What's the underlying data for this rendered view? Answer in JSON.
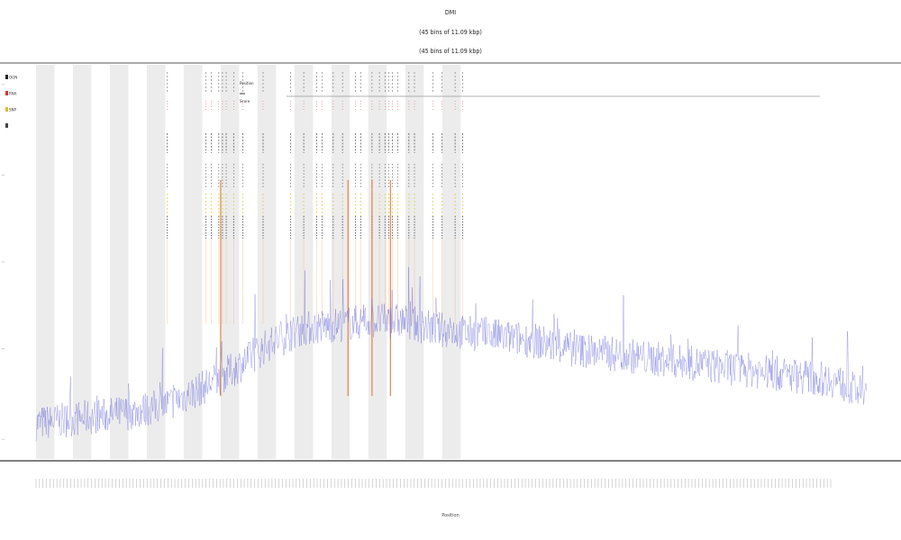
{
  "chart_data": {
    "type": "line",
    "title": [
      "DMI",
      "(45 bins of 11.09 kbp)",
      "(45 bins of 11.09 kbp)"
    ],
    "legend": [
      {
        "name": "OGN",
        "color": "#222222"
      },
      {
        "name": "RNA",
        "color": "#e03030"
      },
      {
        "name": "SNP",
        "color": "#d8c020"
      },
      {
        "name": "",
        "color": "#444444"
      }
    ],
    "inner_legend": [
      "Position",
      "",
      "Score"
    ],
    "xlabel": "Position",
    "ylabel": "",
    "x_range": [
      0,
      45
    ],
    "y_range": [
      0,
      1
    ],
    "shaded_bins": [
      0,
      2,
      4,
      6,
      8,
      10,
      12,
      14,
      16,
      18,
      20,
      22
    ],
    "series": [
      {
        "name": "",
        "color": "#5a5ad8",
        "baseline": [
          0.09,
          0.1,
          0.11,
          0.12,
          0.14,
          0.18,
          0.23,
          0.29,
          0.33,
          0.34,
          0.35,
          0.35,
          0.33,
          0.32,
          0.31,
          0.3,
          0.28,
          0.27,
          0.26,
          0.25,
          0.24,
          0.23,
          0.22,
          0.21,
          0.2,
          0.16
        ]
      }
    ],
    "spike_positions": [
      7.1,
      9.2,
      9.5,
      9.9,
      10.1,
      10.3,
      10.7,
      11.2,
      12.3,
      13.8,
      14.5,
      15.2,
      15.5,
      16.1,
      16.6,
      17.3,
      17.6,
      18.2,
      18.6,
      18.9,
      19.1,
      19.3,
      19.6,
      20.2,
      20.5,
      21.5,
      22.0,
      22.7,
      23.1
    ],
    "strong_spikes": [
      10.0,
      16.9,
      18.2,
      19.2
    ],
    "x_tick_count": 230,
    "y_ticks": [
      "",
      "",
      "",
      "",
      ""
    ]
  }
}
